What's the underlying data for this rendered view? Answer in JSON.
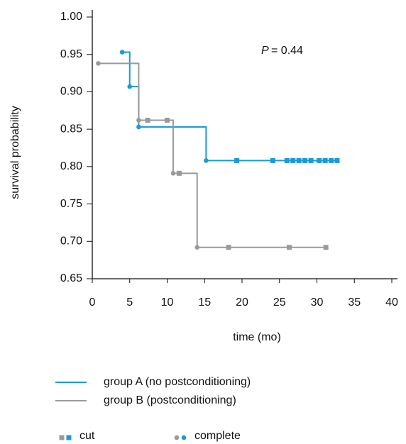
{
  "chart_data": {
    "type": "step",
    "xlabel": "time (mo)",
    "ylabel": "survival probability",
    "annotation_symbol": "P",
    "annotation_text": "= 0.44",
    "xlim": [
      0,
      40
    ],
    "xticks": [
      0,
      5,
      10,
      15,
      20,
      25,
      30,
      35,
      40
    ],
    "ylim": [
      0.65,
      1.0
    ],
    "yticks": [
      0.65,
      {
        "value": 0.7,
        "label": "0.70"
      },
      0.75,
      {
        "value": 0.8,
        "label": "0.80"
      },
      0.85,
      {
        "value": 0.9,
        "label": "0.90"
      },
      0.95,
      {
        "value": 1.0,
        "label": "1.00"
      }
    ],
    "markers": [
      {
        "label": "cut",
        "shape": "square"
      },
      {
        "label": "complete",
        "shape": "circle"
      }
    ],
    "series": [
      {
        "name": "group A (no postconditioning)",
        "color": "#1a9bd7",
        "x": [
          4,
          5,
          6.2,
          15.2,
          19.3,
          24.1,
          26,
          26.8,
          27.6,
          28.4,
          29.2,
          30.3,
          31.1,
          31.9,
          32.7
        ],
        "values": [
          0.953,
          0.907,
          0.853,
          0.808,
          0.808,
          0.808,
          0.808,
          0.808,
          0.808,
          0.808,
          0.808,
          0.808,
          0.808,
          0.808,
          0.808
        ],
        "marker": [
          "circle",
          "circle",
          "circle",
          "circle",
          "square",
          "square",
          "square",
          "square",
          "square",
          "square",
          "square",
          "square",
          "square",
          "square",
          "square"
        ]
      },
      {
        "name": "group B (postconditioning)",
        "color": "#9a9a9a",
        "x": [
          0.8,
          6.2,
          7.4,
          10,
          10.8,
          11.6,
          14,
          18.2,
          26.3,
          31.2
        ],
        "values": [
          0.938,
          0.862,
          0.862,
          0.862,
          0.791,
          0.791,
          0.692,
          0.692,
          0.692,
          0.692
        ],
        "marker": [
          "circle",
          "circle",
          "square",
          "square",
          "circle",
          "square",
          "circle",
          "square",
          "square",
          "square"
        ]
      }
    ]
  }
}
